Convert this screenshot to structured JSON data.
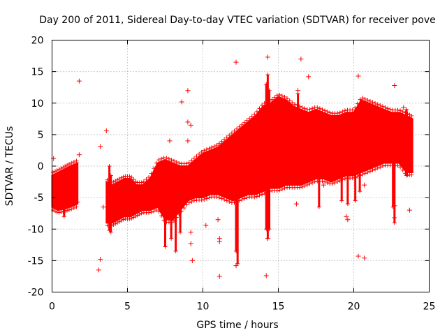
{
  "chart_data": {
    "type": "scatter",
    "title": "Day 200 of 2011, Sidereal Day-to-day VTEC variation (SDTVAR) for receiver pove",
    "xlabel": "GPS time / hours",
    "ylabel": "SDTVAR / TECUs",
    "xlim": [
      0,
      25
    ],
    "ylim": [
      -20,
      20
    ],
    "xticks": [
      0,
      5,
      10,
      15,
      20,
      25
    ],
    "yticks": [
      -20,
      -15,
      -10,
      -5,
      0,
      5,
      10,
      15,
      20
    ],
    "grid": true,
    "marker": "+",
    "color": "#ff0000",
    "series": [
      {
        "name": "SDTVAR",
        "band_segments": [
          {
            "x": [
              0.0,
              0.4,
              0.8,
              1.2,
              1.7
            ],
            "low": [
              -6.5,
              -7.0,
              -6.8,
              -6.5,
              -6.0
            ],
            "high": [
              -1.5,
              -1.0,
              -0.5,
              0.0,
              0.5
            ]
          },
          {
            "x": [
              3.6,
              4.0,
              4.4,
              4.8,
              5.2,
              5.6,
              6.0,
              6.5,
              7.0,
              7.5,
              8.0,
              8.5,
              9.0,
              9.5,
              10.0,
              10.5,
              11.0,
              11.5,
              12.0,
              12.5,
              13.0,
              13.5,
              14.0,
              14.5,
              15.0,
              15.5,
              16.0,
              16.5,
              17.0,
              17.5,
              18.0,
              18.5,
              19.0,
              19.5,
              20.0,
              20.5,
              21.0,
              21.5,
              22.0,
              22.5,
              23.0,
              23.5,
              23.9
            ],
            "low": [
              -9.0,
              -9.0,
              -8.5,
              -8.0,
              -8.0,
              -7.5,
              -7.0,
              -7.0,
              -6.5,
              -8.5,
              -8.5,
              -7.0,
              -5.5,
              -5.0,
              -5.0,
              -4.5,
              -4.5,
              -5.0,
              -5.5,
              -5.0,
              -4.5,
              -4.5,
              -4.0,
              -3.5,
              -3.5,
              -3.0,
              -3.0,
              -3.0,
              -2.5,
              -2.0,
              -2.0,
              -2.5,
              -2.0,
              -1.5,
              -1.5,
              -1.0,
              -0.5,
              0.0,
              0.5,
              0.5,
              0.5,
              -1.0,
              -1.0
            ],
            "high": [
              -2.5,
              -3.0,
              -2.5,
              -2.0,
              -2.0,
              -3.0,
              -3.0,
              -2.0,
              0.5,
              1.0,
              0.5,
              0.0,
              0.0,
              1.0,
              2.0,
              2.5,
              3.0,
              4.0,
              5.0,
              6.0,
              7.0,
              8.0,
              9.5,
              10.0,
              11.0,
              10.5,
              9.5,
              9.0,
              8.5,
              9.0,
              8.5,
              8.0,
              8.0,
              8.5,
              8.5,
              10.5,
              10.0,
              9.5,
              9.0,
              8.5,
              8.5,
              8.0,
              7.5
            ]
          }
        ],
        "outliers": [
          [
            1.8,
            13.5
          ],
          [
            1.8,
            1.8
          ],
          [
            1.7,
            -5.7
          ],
          [
            0.1,
            1.2
          ],
          [
            3.2,
            3.1
          ],
          [
            3.4,
            -6.5
          ],
          [
            3.6,
            5.6
          ],
          [
            3.2,
            -14.8
          ],
          [
            3.1,
            -16.5
          ],
          [
            7.8,
            4.0
          ],
          [
            8.6,
            10.2
          ],
          [
            9.0,
            12.0
          ],
          [
            9.0,
            7.0
          ],
          [
            9.2,
            6.5
          ],
          [
            9.0,
            4.0
          ],
          [
            9.2,
            -10.5
          ],
          [
            9.2,
            -12.3
          ],
          [
            9.3,
            -15.0
          ],
          [
            10.2,
            -9.4
          ],
          [
            11.1,
            -11.5
          ],
          [
            11.1,
            -12.0
          ],
          [
            11.0,
            -8.5
          ],
          [
            11.1,
            -17.5
          ],
          [
            12.2,
            16.5
          ],
          [
            12.2,
            -15.8
          ],
          [
            13.4,
            5.5
          ],
          [
            14.3,
            17.3
          ],
          [
            14.2,
            -17.4
          ],
          [
            14.3,
            -11.5
          ],
          [
            16.3,
            12.0
          ],
          [
            16.5,
            17.0
          ],
          [
            16.2,
            -6.0
          ],
          [
            17.0,
            14.2
          ],
          [
            18.0,
            -3.0
          ],
          [
            19.5,
            -8.0
          ],
          [
            19.6,
            -8.5
          ],
          [
            20.3,
            14.3
          ],
          [
            20.3,
            -14.3
          ],
          [
            20.7,
            -14.6
          ],
          [
            20.7,
            -3.0
          ],
          [
            22.7,
            12.8
          ],
          [
            22.7,
            -8.2
          ],
          [
            22.7,
            -6.3
          ],
          [
            23.3,
            9.3
          ],
          [
            23.5,
            1.0
          ],
          [
            23.7,
            -7.0
          ]
        ],
        "spikes": [
          [
            0.8,
            -8.0,
            -2.0
          ],
          [
            3.8,
            -10.2,
            0.0
          ],
          [
            3.9,
            -10.5,
            -1.5
          ],
          [
            7.5,
            -12.8,
            -6.0
          ],
          [
            7.9,
            -11.5,
            -7.0
          ],
          [
            8.2,
            -13.5,
            -6.0
          ],
          [
            8.5,
            -10.5,
            -5.0
          ],
          [
            12.2,
            -13.5,
            4.0
          ],
          [
            12.3,
            -15.5,
            3.0
          ],
          [
            14.2,
            -10.0,
            13.0
          ],
          [
            14.3,
            -11.5,
            14.5
          ],
          [
            14.4,
            -10.0,
            12.0
          ],
          [
            16.3,
            3.0,
            11.5
          ],
          [
            17.7,
            -6.5,
            0.0
          ],
          [
            19.2,
            -5.5,
            7.0
          ],
          [
            19.6,
            -6.0,
            6.0
          ],
          [
            20.1,
            -5.5,
            5.0
          ],
          [
            20.4,
            -4.0,
            7.0
          ],
          [
            22.6,
            -6.5,
            5.0
          ],
          [
            22.7,
            -9.0,
            2.0
          ],
          [
            23.5,
            -1.5,
            9.0
          ]
        ]
      }
    ]
  }
}
